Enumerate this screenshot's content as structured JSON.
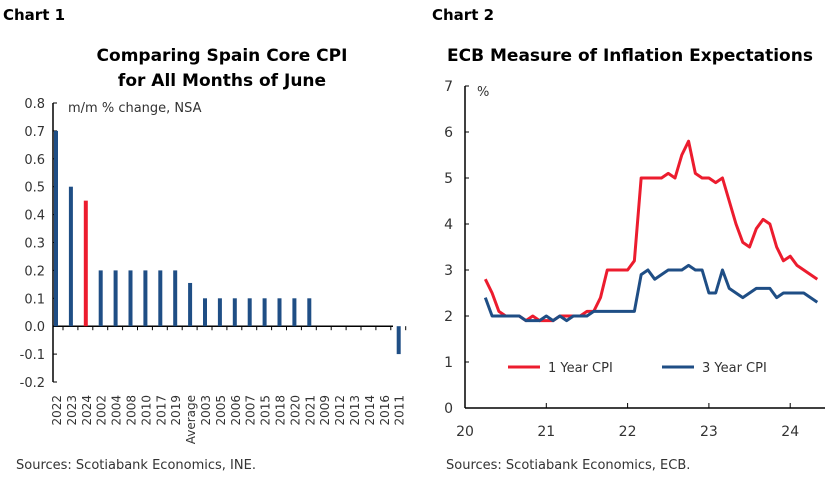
{
  "chart_data": [
    {
      "type": "bar",
      "label": "Chart 1",
      "title": "Comparing Spain Core CPI for All Months of June",
      "title_lines": [
        "Comparing Spain Core CPI",
        "for All Months of June"
      ],
      "unit_label": "m/m % change, NSA",
      "source": "Sources: Scotiabank Economics, INE.",
      "categories": [
        "2022",
        "2023",
        "2024",
        "2002",
        "2004",
        "2008",
        "2010",
        "2017",
        "2019",
        "Average",
        "2003",
        "2005",
        "2006",
        "2007",
        "2015",
        "2018",
        "2020",
        "2021",
        "2009",
        "2012",
        "2013",
        "2014",
        "2016",
        "2011"
      ],
      "values": [
        0.7,
        0.5,
        0.45,
        0.2,
        0.2,
        0.2,
        0.2,
        0.2,
        0.2,
        0.155,
        0.1,
        0.1,
        0.1,
        0.1,
        0.1,
        0.1,
        0.1,
        0.1,
        0,
        0,
        0,
        0,
        0,
        -0.1
      ],
      "highlight_category": "2024",
      "ylim": [
        -0.2,
        0.8
      ],
      "yticks": [
        "-0.2",
        "-0.1",
        "0.0",
        "0.1",
        "0.2",
        "0.3",
        "0.4",
        "0.5",
        "0.6",
        "0.7",
        "0.8"
      ],
      "colors": {
        "bar": "#1f4e85",
        "highlight": "#ec1c2e"
      },
      "grid": false
    },
    {
      "type": "line",
      "label": "Chart 2",
      "title": "ECB Measure of Inflation Expectations",
      "unit_label": "%",
      "source": "Sources: Scotiabank Economics,  ECB.",
      "x_start": "2020-04",
      "x_end": "2024-05",
      "frequency": "monthly",
      "xticks": [
        "20",
        "21",
        "22",
        "23",
        "24"
      ],
      "yticks": [
        "0",
        "1",
        "2",
        "3",
        "4",
        "5",
        "6",
        "7"
      ],
      "ylim": [
        0,
        7
      ],
      "grid": false,
      "legend_position": "bottom-center",
      "series": [
        {
          "name": "1 Year CPI",
          "color": "#ec1c2e",
          "values": [
            2.8,
            2.5,
            2.1,
            2.0,
            2.0,
            2.0,
            1.9,
            2.0,
            1.9,
            1.9,
            1.9,
            2.0,
            2.0,
            2.0,
            2.0,
            2.1,
            2.1,
            2.4,
            3.0,
            3.0,
            3.0,
            3.0,
            3.2,
            5.0,
            5.0,
            5.0,
            5.0,
            5.1,
            5.0,
            5.5,
            5.8,
            5.1,
            5.0,
            5.0,
            4.9,
            5.0,
            4.5,
            4.0,
            3.6,
            3.5,
            3.9,
            4.1,
            4.0,
            3.5,
            3.2,
            3.3,
            3.1,
            3.0,
            2.9,
            2.8
          ]
        },
        {
          "name": "3 Year CPI",
          "color": "#1f4e85",
          "values": [
            2.4,
            2.0,
            2.0,
            2.0,
            2.0,
            2.0,
            1.9,
            1.9,
            1.9,
            2.0,
            1.9,
            2.0,
            1.9,
            2.0,
            2.0,
            2.0,
            2.1,
            2.1,
            2.1,
            2.1,
            2.1,
            2.1,
            2.1,
            2.9,
            3.0,
            2.8,
            2.9,
            3.0,
            3.0,
            3.0,
            3.1,
            3.0,
            3.0,
            2.5,
            2.5,
            3.0,
            2.6,
            2.5,
            2.4,
            2.5,
            2.6,
            2.6,
            2.6,
            2.4,
            2.5,
            2.5,
            2.5,
            2.5,
            2.4,
            2.3
          ]
        }
      ]
    }
  ]
}
